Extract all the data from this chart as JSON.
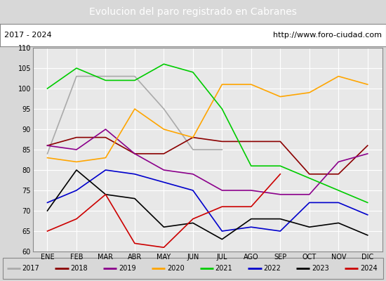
{
  "title": "Evolucion del paro registrado en Cabranes",
  "title_color": "#ffffff",
  "title_bg": "#4472c4",
  "subtitle_left": "2017 - 2024",
  "subtitle_right": "http://www.foro-ciudad.com",
  "months": [
    "ENE",
    "FEB",
    "MAR",
    "ABR",
    "MAY",
    "JUN",
    "JUL",
    "AGO",
    "SEP",
    "OCT",
    "NOV",
    "DIC"
  ],
  "ylim": [
    60,
    110
  ],
  "yticks": [
    60,
    65,
    70,
    75,
    80,
    85,
    90,
    95,
    100,
    105,
    110
  ],
  "series": {
    "2017": {
      "color": "#aaaaaa",
      "values": [
        84,
        103,
        103,
        103,
        95,
        85,
        85,
        null,
        null,
        null,
        null,
        null
      ]
    },
    "2018": {
      "color": "#8b0000",
      "values": [
        86,
        88,
        88,
        84,
        84,
        88,
        87,
        87,
        87,
        79,
        79,
        86
      ]
    },
    "2019": {
      "color": "#8b008b",
      "values": [
        86,
        85,
        90,
        84,
        80,
        79,
        75,
        75,
        74,
        74,
        82,
        84
      ]
    },
    "2020": {
      "color": "#ffa500",
      "values": [
        83,
        82,
        83,
        95,
        90,
        88,
        101,
        101,
        98,
        99,
        103,
        101
      ]
    },
    "2021": {
      "color": "#00cc00",
      "values": [
        100,
        105,
        102,
        102,
        106,
        104,
        95,
        81,
        81,
        78,
        75,
        72
      ]
    },
    "2022": {
      "color": "#0000cc",
      "values": [
        72,
        75,
        80,
        79,
        77,
        75,
        65,
        66,
        65,
        72,
        72,
        69
      ]
    },
    "2023": {
      "color": "#000000",
      "values": [
        70,
        80,
        74,
        73,
        66,
        67,
        63,
        68,
        68,
        66,
        67,
        64
      ]
    },
    "2024": {
      "color": "#cc0000",
      "values": [
        65,
        68,
        74,
        62,
        61,
        68,
        71,
        71,
        79,
        null,
        null,
        null
      ]
    }
  },
  "legend_order": [
    "2017",
    "2018",
    "2019",
    "2020",
    "2021",
    "2022",
    "2023",
    "2024"
  ],
  "bg_color": "#d8d8d8",
  "plot_bg": "#e8e8e8",
  "grid_color": "#ffffff"
}
